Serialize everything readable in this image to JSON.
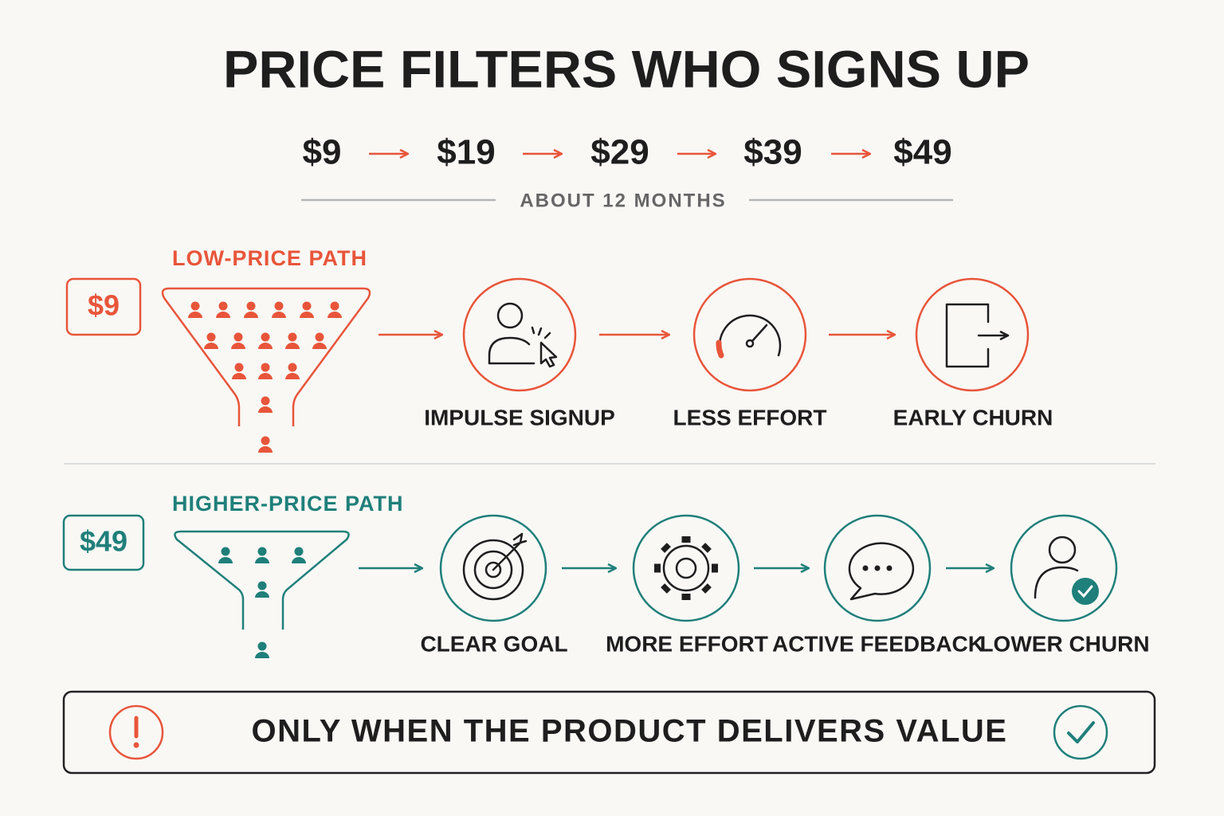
{
  "header": {
    "title": "PRICE FILTERS WHO SIGNS UP",
    "prices": [
      "$9",
      "$19",
      "$29",
      "$39",
      "$49"
    ],
    "timeline_label": "ABOUT 12 MONTHS"
  },
  "low_path": {
    "label": "LOW-PRICE PATH",
    "price": "$9",
    "steps": [
      "IMPULSE SIGNUP",
      "LESS EFFORT",
      "EARLY CHURN"
    ]
  },
  "high_path": {
    "label": "HIGHER-PRICE PATH",
    "price": "$49",
    "steps": [
      "CLEAR GOAL",
      "MORE EFFORT",
      "ACTIVE FEEDBACK",
      "LOWER CHURN"
    ]
  },
  "footer": {
    "text": "ONLY WHEN THE PRODUCT DELIVERS VALUE"
  }
}
